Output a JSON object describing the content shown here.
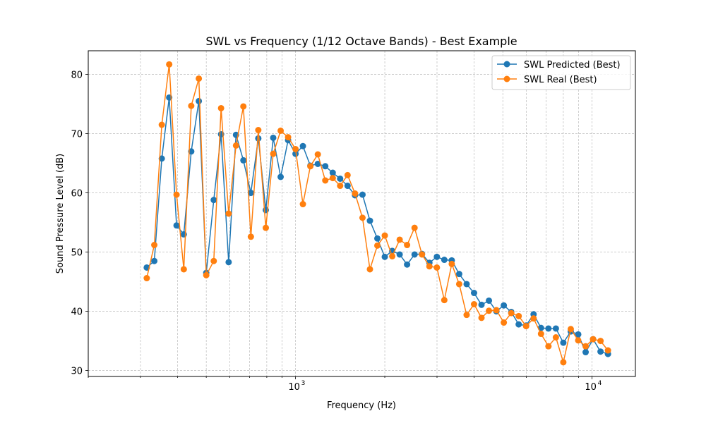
{
  "chart_data": {
    "type": "line",
    "title": "SWL vs Frequency (1/12 Octave Bands) - Best Example",
    "xlabel": "Frequency (Hz)",
    "ylabel": "Sound Pressure Level (dB)",
    "x_scale": "log",
    "xlim": [
      200,
      14000
    ],
    "ylim": [
      29,
      84
    ],
    "yticks": [
      30,
      40,
      50,
      60,
      70,
      80
    ],
    "xticks": [
      {
        "value": 1000,
        "label": "10",
        "exp": "3"
      },
      {
        "value": 10000,
        "label": "10",
        "exp": "4"
      }
    ],
    "grid": true,
    "legend_position": "top-right",
    "x": [
      315,
      334,
      354,
      375,
      397,
      420,
      445,
      472,
      500,
      530,
      561,
      595,
      630,
      667,
      707,
      749,
      794,
      841,
      891,
      944,
      1000,
      1059,
      1122,
      1189,
      1260,
      1335,
      1414,
      1498,
      1587,
      1682,
      1782,
      1888,
      2000,
      2119,
      2245,
      2378,
      2520,
      2670,
      2828,
      2997,
      3175,
      3364,
      3564,
      3776,
      4000,
      4238,
      4490,
      4757,
      5040,
      5339,
      5657,
      5993,
      6350,
      6727,
      7127,
      7551,
      8000,
      8476,
      8980,
      9514,
      10079,
      10679,
      11314
    ],
    "series": [
      {
        "name": "SWL Predicted (Best)",
        "color": "#1f77b4",
        "values": [
          47.4,
          48.5,
          65.8,
          76.1,
          54.5,
          53.0,
          67.0,
          75.5,
          46.5,
          58.8,
          69.9,
          48.3,
          69.8,
          65.5,
          60.0,
          69.2,
          57.1,
          69.3,
          62.7,
          68.9,
          66.6,
          67.9,
          64.6,
          64.9,
          64.5,
          63.4,
          62.4,
          61.2,
          59.6,
          59.7,
          55.3,
          52.3,
          49.2,
          50.2,
          49.6,
          47.9,
          49.6,
          49.7,
          48.2,
          49.2,
          48.7,
          48.6,
          46.3,
          44.6,
          43.1,
          41.1,
          41.8,
          40.0,
          41.0,
          39.9,
          37.8,
          37.6,
          39.5,
          37.2,
          37.1,
          37.1,
          34.7,
          36.6,
          36.1,
          33.1,
          35.3,
          33.2,
          32.8
        ]
      },
      {
        "name": "SWL Real (Best)",
        "color": "#ff7f0e",
        "values": [
          45.6,
          51.2,
          71.5,
          81.7,
          59.7,
          47.1,
          74.7,
          79.3,
          46.1,
          48.5,
          74.3,
          56.5,
          68.0,
          74.6,
          52.6,
          70.6,
          54.1,
          66.6,
          70.5,
          69.4,
          67.4,
          58.1,
          64.5,
          66.5,
          62.1,
          62.5,
          61.2,
          63.0,
          59.9,
          55.8,
          47.1,
          51.1,
          52.8,
          49.3,
          52.1,
          51.2,
          54.1,
          49.6,
          47.6,
          47.4,
          41.9,
          48.0,
          44.6,
          39.4,
          41.2,
          38.9,
          40.1,
          40.2,
          38.1,
          39.7,
          39.2,
          37.5,
          38.8,
          36.2,
          34.1,
          35.6,
          31.4,
          37.0,
          35.1,
          34.1,
          35.3,
          35.0,
          33.4
        ]
      }
    ]
  }
}
